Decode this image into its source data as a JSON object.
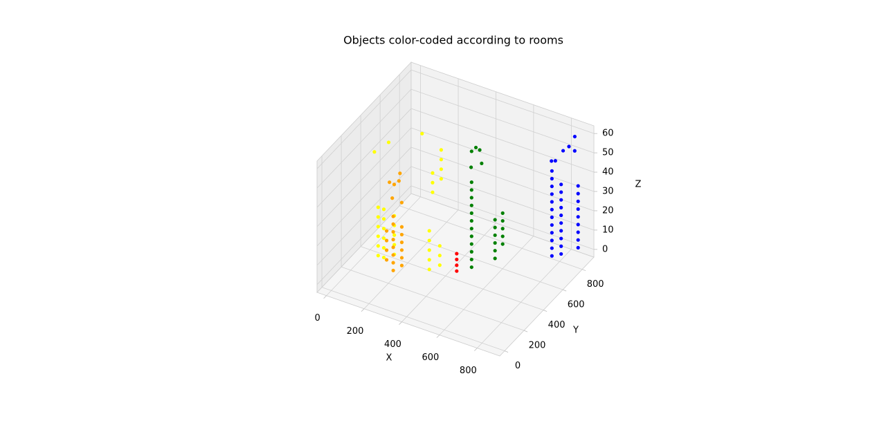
{
  "chart_data": {
    "type": "scatter3d",
    "title": "Objects color-coded according to rooms",
    "xlabel": "X",
    "ylabel": "Y",
    "zlabel": "Z",
    "xlim": [
      -50,
      920
    ],
    "ylim": [
      -50,
      920
    ],
    "zlim": [
      -4,
      64
    ],
    "xticks": [
      0,
      200,
      400,
      600,
      800
    ],
    "yticks": [
      0,
      200,
      400,
      600,
      800
    ],
    "zticks": [
      0,
      10,
      20,
      30,
      40,
      50,
      60
    ],
    "grid": true,
    "series": [
      {
        "color": "#ffff00",
        "x": [
          120,
          120,
          120,
          120,
          120,
          120,
          150,
          150,
          150,
          150,
          150,
          150,
          180,
          180,
          180,
          180,
          180,
          300,
          300,
          300,
          300,
          280,
          280,
          280,
          100,
          150,
          250,
          340,
          340,
          340,
          340,
          340,
          380,
          380,
          380
        ],
        "y": [
          250,
          250,
          250,
          250,
          250,
          250,
          250,
          250,
          250,
          250,
          250,
          250,
          300,
          300,
          300,
          300,
          300,
          550,
          550,
          550,
          550,
          500,
          500,
          500,
          250,
          300,
          450,
          350,
          350,
          350,
          350,
          350,
          380,
          380,
          380
        ],
        "z": [
          5,
          10,
          15,
          20,
          25,
          30,
          5,
          10,
          15,
          20,
          25,
          30,
          5,
          10,
          15,
          20,
          25,
          35,
          40,
          45,
          50,
          30,
          35,
          40,
          58,
          62,
          62,
          0,
          5,
          10,
          15,
          20,
          2,
          7,
          12
        ]
      },
      {
        "color": "#ffa500",
        "x": [
          200,
          200,
          200,
          200,
          200,
          200,
          200,
          200,
          230,
          230,
          230,
          230,
          230,
          230,
          170,
          170,
          170,
          170,
          200,
          220,
          180,
          210,
          200,
          240
        ],
        "y": [
          250,
          250,
          250,
          250,
          250,
          250,
          250,
          250,
          280,
          280,
          280,
          280,
          280,
          280,
          240,
          240,
          240,
          240,
          260,
          270,
          250,
          300,
          240,
          260
        ],
        "z": [
          0,
          4,
          8,
          12,
          16,
          20,
          24,
          28,
          2,
          6,
          10,
          14,
          18,
          22,
          5,
          10,
          15,
          20,
          44,
          46,
          45,
          48,
          38,
          36
        ]
      },
      {
        "color": "#ff0000",
        "x": [
          470,
          470,
          470,
          470
        ],
        "y": [
          380,
          380,
          380,
          380
        ],
        "z": [
          2,
          5,
          8,
          11
        ]
      },
      {
        "color": "#008000",
        "x": [
          500,
          500,
          500,
          500,
          500,
          500,
          500,
          500,
          500,
          500,
          500,
          500,
          560,
          560,
          560,
          560,
          560,
          560,
          580,
          580,
          580,
          580,
          580,
          500,
          520,
          500,
          520,
          510
        ],
        "y": [
          475,
          475,
          475,
          475,
          475,
          475,
          475,
          475,
          475,
          475,
          475,
          475,
          600,
          600,
          600,
          600,
          600,
          600,
          640,
          640,
          640,
          640,
          640,
          475,
          520,
          470,
          540,
          500
        ],
        "z": [
          0,
          4,
          8,
          12,
          16,
          20,
          24,
          28,
          32,
          36,
          40,
          44,
          0,
          4,
          8,
          12,
          16,
          20,
          6,
          10,
          14,
          18,
          22,
          60,
          59,
          52,
          51,
          61
        ]
      },
      {
        "color": "#0000ff",
        "x": [
          880,
          880,
          880,
          880,
          880,
          880,
          880,
          880,
          880,
          880,
          880,
          880,
          880,
          880,
          880,
          880,
          880,
          880,
          880,
          880,
          880,
          880,
          880,
          880,
          880,
          880,
          880,
          880,
          880,
          880,
          880,
          870,
          870,
          870,
          870,
          870,
          880
        ],
        "y": [
          565,
          565,
          565,
          565,
          565,
          565,
          565,
          565,
          565,
          565,
          565,
          565,
          660,
          660,
          660,
          660,
          660,
          660,
          660,
          660,
          660,
          660,
          835,
          835,
          835,
          835,
          835,
          835,
          835,
          835,
          835,
          580,
          620,
          700,
          760,
          820,
          800
        ],
        "z": [
          14,
          18,
          22,
          26,
          30,
          34,
          38,
          42,
          46,
          50,
          54,
          58,
          10,
          14,
          18,
          22,
          26,
          30,
          34,
          38,
          42,
          46,
          4,
          8,
          12,
          16,
          20,
          24,
          28,
          32,
          36,
          62,
          60,
          61,
          60,
          62,
          56
        ]
      }
    ]
  }
}
